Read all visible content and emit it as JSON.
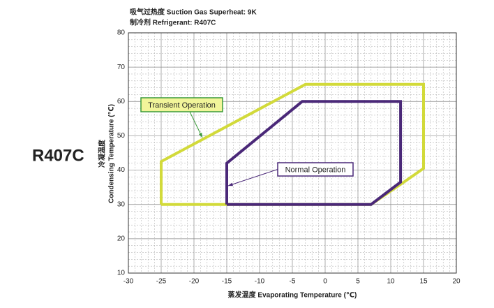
{
  "chart_data": {
    "type": "line",
    "title": "吸气过热度  Suction Gas Superheat: 9K",
    "subtitle": "制冷剂  Refrigerant: R407C",
    "label": "R407C",
    "x_label": "蒸发温度  Evaporating Temperature (℃)",
    "y_label_cn": "冷凝温度",
    "y_label": "Condensing Temperature (℃)",
    "xlim": [
      -30,
      20
    ],
    "xticks": [
      -30,
      -25,
      -20,
      -15,
      -10,
      -5,
      0,
      5,
      10,
      15,
      20
    ],
    "ylim": [
      10,
      80
    ],
    "yticks": [
      10,
      20,
      30,
      40,
      50,
      60,
      70,
      80
    ],
    "grid": true,
    "series": [
      {
        "name": "Transient Operation",
        "color": "#d2da3a",
        "x": [
          -25,
          -25,
          -3,
          15,
          15,
          12,
          7,
          -25
        ],
        "values": [
          30,
          42.5,
          65,
          65,
          40.5,
          36.5,
          30,
          30
        ]
      },
      {
        "name": "Normal Operation",
        "color": "#4a2878",
        "x": [
          -15,
          -15,
          -3.5,
          11.5,
          11.5,
          7,
          -15
        ],
        "values": [
          30,
          42,
          60,
          60,
          36.5,
          30,
          30
        ]
      }
    ]
  }
}
